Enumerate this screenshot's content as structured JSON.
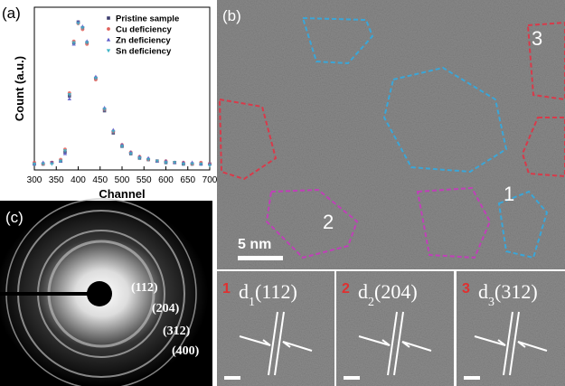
{
  "chart_data": {
    "type": "scatter",
    "panel_label": "(a)",
    "x_label": "Channel",
    "y_label": "Count (a.u.)",
    "x": [
      300,
      320,
      340,
      360,
      370,
      380,
      390,
      400,
      410,
      420,
      440,
      460,
      480,
      500,
      520,
      540,
      560,
      580,
      600,
      620,
      640,
      660,
      680,
      700
    ],
    "series": [
      {
        "name": "Pristine sample",
        "color": "#3c3c6e",
        "marker": "square",
        "values": [
          0.04,
          0.04,
          0.05,
          0.06,
          0.12,
          0.5,
          0.86,
          1.0,
          0.96,
          0.86,
          0.62,
          0.4,
          0.25,
          0.16,
          0.11,
          0.08,
          0.07,
          0.06,
          0.05,
          0.05,
          0.04,
          0.04,
          0.04,
          0.04
        ]
      },
      {
        "name": "Cu deficiency",
        "color": "#e0605a",
        "marker": "circle",
        "values": [
          0.05,
          0.04,
          0.05,
          0.07,
          0.14,
          0.52,
          0.87,
          0.99,
          0.95,
          0.85,
          0.61,
          0.41,
          0.26,
          0.17,
          0.12,
          0.09,
          0.07,
          0.06,
          0.06,
          0.05,
          0.05,
          0.04,
          0.05,
          0.04
        ]
      },
      {
        "name": "Zn deficiency",
        "color": "#5a5ac8",
        "marker": "triangle",
        "values": [
          0.04,
          0.05,
          0.05,
          0.06,
          0.11,
          0.48,
          0.85,
          1.0,
          0.97,
          0.87,
          0.63,
          0.42,
          0.27,
          0.17,
          0.12,
          0.09,
          0.08,
          0.06,
          0.06,
          0.05,
          0.05,
          0.05,
          0.04,
          0.04
        ]
      },
      {
        "name": "Sn deficiency",
        "color": "#3fb4c6",
        "marker": "triangle-down",
        "values": [
          0.04,
          0.04,
          0.04,
          0.06,
          0.13,
          0.51,
          0.86,
          0.99,
          0.96,
          0.86,
          0.62,
          0.41,
          0.26,
          0.16,
          0.11,
          0.08,
          0.07,
          0.06,
          0.05,
          0.05,
          0.04,
          0.04,
          0.04,
          0.03
        ]
      }
    ],
    "xlim": [
      300,
      700
    ],
    "xticks": [
      300,
      350,
      400,
      450,
      500,
      550,
      600,
      650,
      700
    ],
    "ylim": [
      0,
      1.1
    ],
    "legend": "upper right"
  },
  "figure": {
    "hrtem": {
      "panel_label": "(b)",
      "region_labels": [
        "1",
        "2",
        "3"
      ],
      "scale_bar": "5 nm"
    },
    "saed": {
      "panel_label": "(c)",
      "rings": [
        "(112)",
        "(204)",
        "(312)",
        "(400)"
      ]
    },
    "insets": [
      {
        "index": "1",
        "letter": "d",
        "sub": "1",
        "plane": "(112)"
      },
      {
        "index": "2",
        "letter": "d",
        "sub": "2",
        "plane": "(204)"
      },
      {
        "index": "3",
        "letter": "d",
        "sub": "3",
        "plane": "(312)"
      }
    ]
  }
}
